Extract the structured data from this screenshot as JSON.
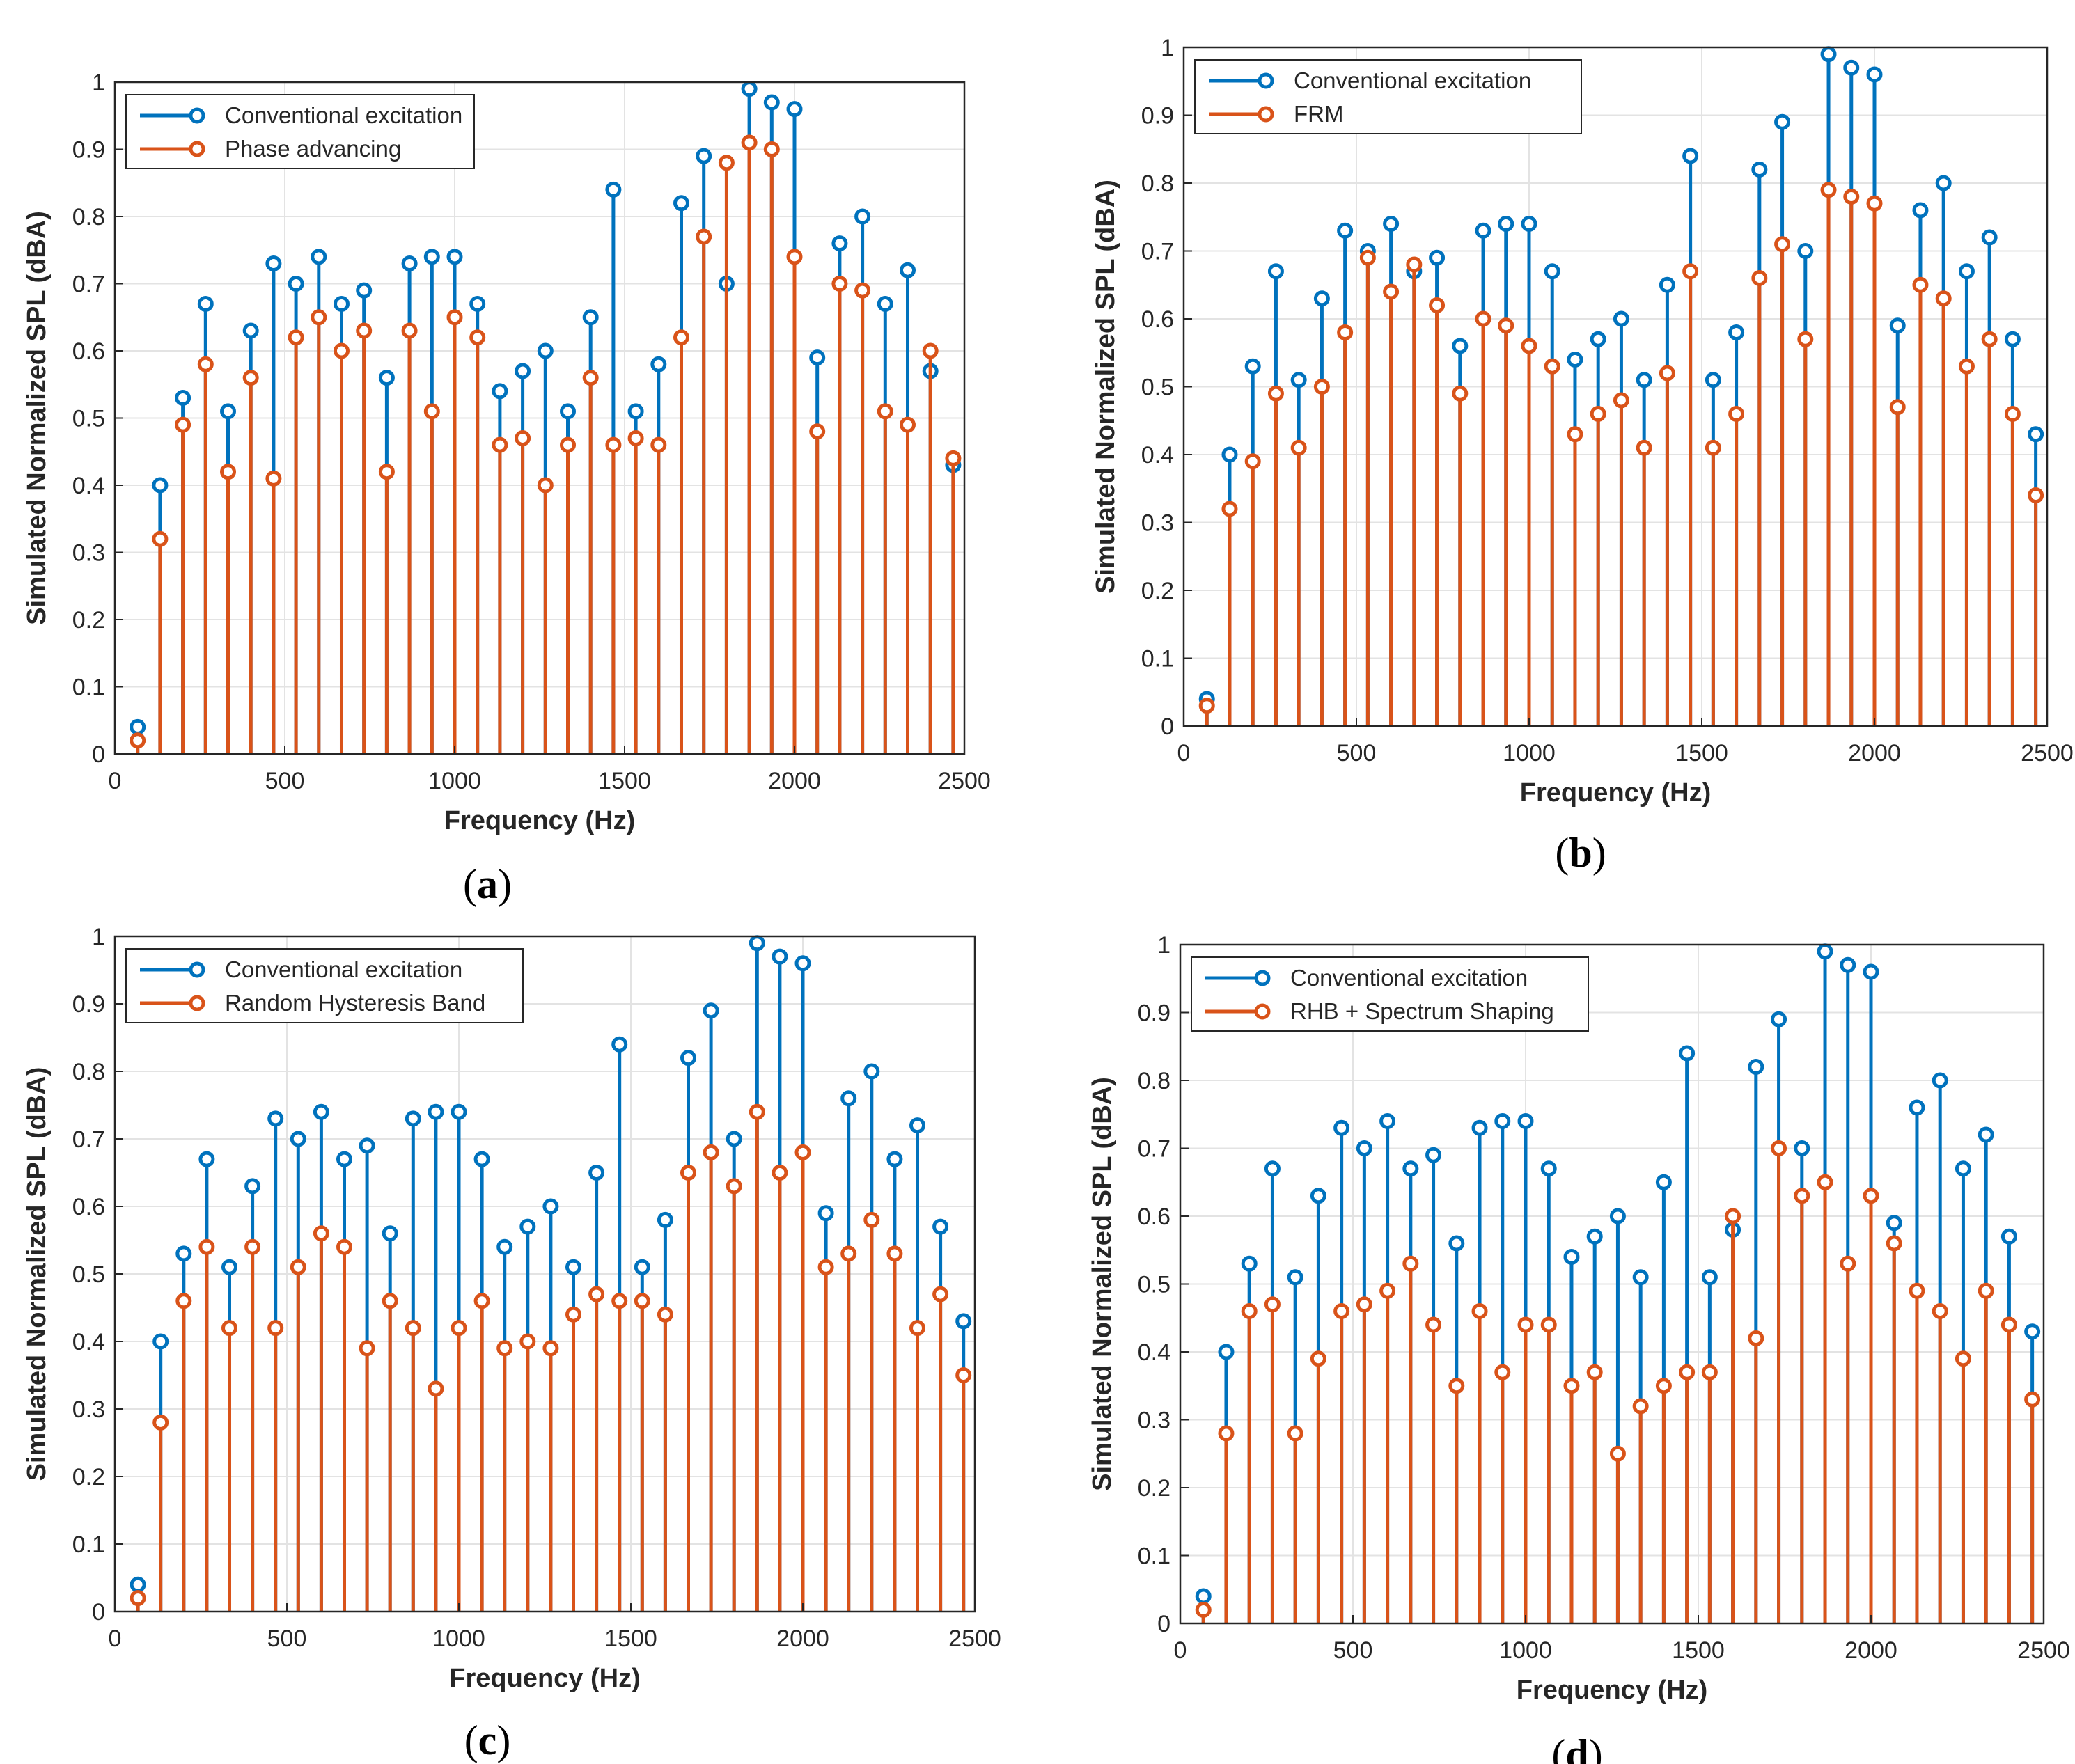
{
  "colors": {
    "conventional": "#0072BD",
    "modified": "#D95319",
    "grid": "#e3e3e3",
    "axis": "#262626"
  },
  "chart_data": [
    {
      "type": "stem",
      "panel_label": "a",
      "xlabel": "Frequency (Hz)",
      "ylabel": "Simulated Normalized SPL (dBA)",
      "xlim": [
        0,
        2500
      ],
      "ylim": [
        0,
        1
      ],
      "xticks": [
        0,
        500,
        1000,
        1500,
        2000,
        2500
      ],
      "yticks": [
        0,
        0.1,
        0.2,
        0.3,
        0.4,
        0.5,
        0.6,
        0.7,
        0.8,
        0.9,
        1
      ],
      "grid": true,
      "legend": "top-left",
      "x": [
        67,
        133,
        200,
        267,
        333,
        400,
        467,
        533,
        600,
        667,
        733,
        800,
        867,
        933,
        1000,
        1067,
        1133,
        1200,
        1267,
        1333,
        1400,
        1467,
        1533,
        1600,
        1667,
        1733,
        1800,
        1867,
        1933,
        2000,
        2067,
        2133,
        2200,
        2267,
        2333,
        2400,
        2467
      ],
      "series": [
        {
          "name": "Conventional excitation",
          "values": [
            0.04,
            0.4,
            0.53,
            0.67,
            0.51,
            0.63,
            0.73,
            0.7,
            0.74,
            0.67,
            0.69,
            0.56,
            0.73,
            0.74,
            0.74,
            0.67,
            0.54,
            0.57,
            0.6,
            0.51,
            0.65,
            0.84,
            0.51,
            0.58,
            0.82,
            0.89,
            0.7,
            0.99,
            0.97,
            0.96,
            0.59,
            0.76,
            0.8,
            0.67,
            0.72,
            0.57,
            0.43
          ]
        },
        {
          "name": "Phase advancing",
          "values": [
            0.02,
            0.32,
            0.49,
            0.58,
            0.42,
            0.56,
            0.41,
            0.62,
            0.65,
            0.6,
            0.63,
            0.42,
            0.63,
            0.51,
            0.65,
            0.62,
            0.46,
            0.47,
            0.4,
            0.46,
            0.56,
            0.46,
            0.47,
            0.46,
            0.62,
            0.77,
            0.88,
            0.91,
            0.9,
            0.74,
            0.48,
            0.7,
            0.69,
            0.51,
            0.49,
            0.6,
            0.44
          ]
        }
      ]
    },
    {
      "type": "stem",
      "panel_label": "b",
      "xlabel": "Frequency (Hz)",
      "ylabel": "Simulated Normalized SPL (dBA)",
      "xlim": [
        0,
        2500
      ],
      "ylim": [
        0,
        1
      ],
      "xticks": [
        0,
        500,
        1000,
        1500,
        2000,
        2500
      ],
      "yticks": [
        0,
        0.1,
        0.2,
        0.3,
        0.4,
        0.5,
        0.6,
        0.7,
        0.8,
        0.9,
        1
      ],
      "grid": true,
      "legend": "top-left",
      "x": [
        67,
        133,
        200,
        267,
        333,
        400,
        467,
        533,
        600,
        667,
        733,
        800,
        867,
        933,
        1000,
        1067,
        1133,
        1200,
        1267,
        1333,
        1400,
        1467,
        1533,
        1600,
        1667,
        1733,
        1800,
        1867,
        1933,
        2000,
        2067,
        2133,
        2200,
        2267,
        2333,
        2400,
        2467
      ],
      "series": [
        {
          "name": "Conventional excitation",
          "values": [
            0.04,
            0.4,
            0.53,
            0.67,
            0.51,
            0.63,
            0.73,
            0.7,
            0.74,
            0.67,
            0.69,
            0.56,
            0.73,
            0.74,
            0.74,
            0.67,
            0.54,
            0.57,
            0.6,
            0.51,
            0.65,
            0.84,
            0.51,
            0.58,
            0.82,
            0.89,
            0.7,
            0.99,
            0.97,
            0.96,
            0.59,
            0.76,
            0.8,
            0.67,
            0.72,
            0.57,
            0.43
          ]
        },
        {
          "name": "FRM",
          "values": [
            0.03,
            0.32,
            0.39,
            0.49,
            0.41,
            0.5,
            0.58,
            0.69,
            0.64,
            0.68,
            0.62,
            0.49,
            0.6,
            0.59,
            0.56,
            0.53,
            0.43,
            0.46,
            0.48,
            0.41,
            0.52,
            0.67,
            0.41,
            0.46,
            0.66,
            0.71,
            0.57,
            0.79,
            0.78,
            0.77,
            0.47,
            0.65,
            0.63,
            0.53,
            0.57,
            0.46,
            0.34
          ]
        }
      ]
    },
    {
      "type": "stem",
      "panel_label": "c",
      "xlabel": "Frequency (Hz)",
      "ylabel": "Simulated Normalized SPL (dBA)",
      "xlim": [
        0,
        2500
      ],
      "ylim": [
        0,
        1
      ],
      "xticks": [
        0,
        500,
        1000,
        1500,
        2000,
        2500
      ],
      "yticks": [
        0,
        0.1,
        0.2,
        0.3,
        0.4,
        0.5,
        0.6,
        0.7,
        0.8,
        0.9,
        1
      ],
      "grid": true,
      "legend": "top-left",
      "x": [
        67,
        133,
        200,
        267,
        333,
        400,
        467,
        533,
        600,
        667,
        733,
        800,
        867,
        933,
        1000,
        1067,
        1133,
        1200,
        1267,
        1333,
        1400,
        1467,
        1533,
        1600,
        1667,
        1733,
        1800,
        1867,
        1933,
        2000,
        2067,
        2133,
        2200,
        2267,
        2333,
        2400,
        2467
      ],
      "series": [
        {
          "name": "Conventional excitation",
          "values": [
            0.04,
            0.4,
            0.53,
            0.67,
            0.51,
            0.63,
            0.73,
            0.7,
            0.74,
            0.67,
            0.69,
            0.56,
            0.73,
            0.74,
            0.74,
            0.67,
            0.54,
            0.57,
            0.6,
            0.51,
            0.65,
            0.84,
            0.51,
            0.58,
            0.82,
            0.89,
            0.7,
            0.99,
            0.97,
            0.96,
            0.59,
            0.76,
            0.8,
            0.67,
            0.72,
            0.57,
            0.43
          ]
        },
        {
          "name": "Random Hysteresis Band",
          "values": [
            0.02,
            0.28,
            0.46,
            0.54,
            0.42,
            0.54,
            0.42,
            0.51,
            0.56,
            0.54,
            0.39,
            0.46,
            0.42,
            0.33,
            0.42,
            0.46,
            0.39,
            0.4,
            0.39,
            0.44,
            0.47,
            0.46,
            0.46,
            0.44,
            0.65,
            0.68,
            0.63,
            0.74,
            0.65,
            0.68,
            0.51,
            0.53,
            0.58,
            0.53,
            0.42,
            0.47,
            0.35
          ]
        }
      ]
    },
    {
      "type": "stem",
      "panel_label": "d",
      "xlabel": "Frequency (Hz)",
      "ylabel": "Simulated Normalized SPL (dBA)",
      "xlim": [
        0,
        2500
      ],
      "ylim": [
        0,
        1
      ],
      "xticks": [
        0,
        500,
        1000,
        1500,
        2000,
        2500
      ],
      "yticks": [
        0,
        0.1,
        0.2,
        0.3,
        0.4,
        0.5,
        0.6,
        0.7,
        0.8,
        0.9,
        1
      ],
      "grid": true,
      "legend": "top-left",
      "x": [
        67,
        133,
        200,
        267,
        333,
        400,
        467,
        533,
        600,
        667,
        733,
        800,
        867,
        933,
        1000,
        1067,
        1133,
        1200,
        1267,
        1333,
        1400,
        1467,
        1533,
        1600,
        1667,
        1733,
        1800,
        1867,
        1933,
        2000,
        2067,
        2133,
        2200,
        2267,
        2333,
        2400,
        2467
      ],
      "series": [
        {
          "name": "Conventional excitation",
          "values": [
            0.04,
            0.4,
            0.53,
            0.67,
            0.51,
            0.63,
            0.73,
            0.7,
            0.74,
            0.67,
            0.69,
            0.56,
            0.73,
            0.74,
            0.74,
            0.67,
            0.54,
            0.57,
            0.6,
            0.51,
            0.65,
            0.84,
            0.51,
            0.58,
            0.82,
            0.89,
            0.7,
            0.99,
            0.97,
            0.96,
            0.59,
            0.76,
            0.8,
            0.67,
            0.72,
            0.57,
            0.43
          ]
        },
        {
          "name": "RHB + Spectrum Shaping",
          "values": [
            0.02,
            0.28,
            0.46,
            0.47,
            0.28,
            0.39,
            0.46,
            0.47,
            0.49,
            0.53,
            0.44,
            0.35,
            0.46,
            0.37,
            0.44,
            0.44,
            0.35,
            0.37,
            0.25,
            0.32,
            0.35,
            0.37,
            0.37,
            0.6,
            0.42,
            0.7,
            0.63,
            0.65,
            0.53,
            0.63,
            0.56,
            0.49,
            0.46,
            0.39,
            0.49,
            0.44,
            0.33
          ]
        }
      ]
    }
  ]
}
